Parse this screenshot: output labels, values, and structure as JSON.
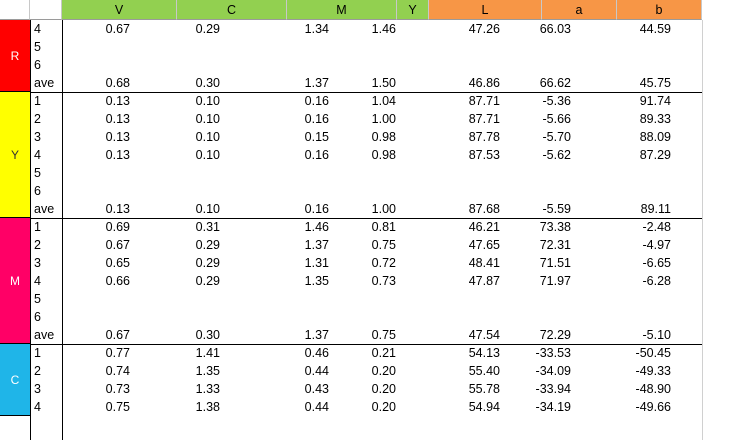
{
  "columns": [
    {
      "label": "V",
      "color": "#92d050"
    },
    {
      "label": "C",
      "color": "#92d050"
    },
    {
      "label": "M",
      "color": "#92d050"
    },
    {
      "label": "Y",
      "color": "#92d050"
    },
    {
      "label": "L",
      "color": "#f79646"
    },
    {
      "label": "a",
      "color": "#f79646"
    },
    {
      "label": "b",
      "color": "#f79646"
    }
  ],
  "groups": [
    {
      "label": "R",
      "color": "#ff0000",
      "text_color": "#ffffff",
      "rows": [
        {
          "id": "4",
          "values": [
            "0.67",
            "0.29",
            "1.34",
            "1.46",
            "47.26",
            "66.03",
            "44.59"
          ]
        },
        {
          "id": "5",
          "values": []
        },
        {
          "id": "6",
          "values": []
        },
        {
          "id": "ave",
          "values": [
            "0.68",
            "0.30",
            "1.37",
            "1.50",
            "46.86",
            "66.62",
            "45.75"
          ]
        }
      ]
    },
    {
      "label": "Y",
      "color": "#ffff00",
      "text_color": "#333333",
      "rows": [
        {
          "id": "1",
          "values": [
            "0.13",
            "0.10",
            "0.16",
            "1.04",
            "87.71",
            "-5.36",
            "91.74"
          ]
        },
        {
          "id": "2",
          "values": [
            "0.13",
            "0.10",
            "0.16",
            "1.00",
            "87.71",
            "-5.66",
            "89.33"
          ]
        },
        {
          "id": "3",
          "values": [
            "0.13",
            "0.10",
            "0.15",
            "0.98",
            "87.78",
            "-5.70",
            "88.09"
          ]
        },
        {
          "id": "4",
          "values": [
            "0.13",
            "0.10",
            "0.16",
            "0.98",
            "87.53",
            "-5.62",
            "87.29"
          ]
        },
        {
          "id": "5",
          "values": []
        },
        {
          "id": "6",
          "values": []
        },
        {
          "id": "ave",
          "values": [
            "0.13",
            "0.10",
            "0.16",
            "1.00",
            "87.68",
            "-5.59",
            "89.11"
          ]
        }
      ]
    },
    {
      "label": "M",
      "color": "#ff0066",
      "text_color": "#ffffff",
      "rows": [
        {
          "id": "1",
          "values": [
            "0.69",
            "0.31",
            "1.46",
            "0.81",
            "46.21",
            "73.38",
            "-2.48"
          ]
        },
        {
          "id": "2",
          "values": [
            "0.67",
            "0.29",
            "1.37",
            "0.75",
            "47.65",
            "72.31",
            "-4.97"
          ]
        },
        {
          "id": "3",
          "values": [
            "0.65",
            "0.29",
            "1.31",
            "0.72",
            "48.41",
            "71.51",
            "-6.65"
          ]
        },
        {
          "id": "4",
          "values": [
            "0.66",
            "0.29",
            "1.35",
            "0.73",
            "47.87",
            "71.97",
            "-6.28"
          ]
        },
        {
          "id": "5",
          "values": []
        },
        {
          "id": "6",
          "values": []
        },
        {
          "id": "ave",
          "values": [
            "0.67",
            "0.30",
            "1.37",
            "0.75",
            "47.54",
            "72.29",
            "-5.10"
          ]
        }
      ]
    },
    {
      "label": "C",
      "color": "#1fb5e8",
      "text_color": "#ffffff",
      "rows": [
        {
          "id": "1",
          "values": [
            "0.77",
            "1.41",
            "0.46",
            "0.21",
            "54.13",
            "-33.53",
            "-50.45"
          ]
        },
        {
          "id": "2",
          "values": [
            "0.74",
            "1.35",
            "0.44",
            "0.20",
            "55.40",
            "-34.09",
            "-49.33"
          ]
        },
        {
          "id": "3",
          "values": [
            "0.73",
            "1.33",
            "0.43",
            "0.20",
            "55.78",
            "-33.94",
            "-48.90"
          ]
        },
        {
          "id": "4",
          "values": [
            "0.75",
            "1.38",
            "0.44",
            "0.20",
            "54.94",
            "-34.19",
            "-49.66"
          ]
        }
      ]
    }
  ]
}
